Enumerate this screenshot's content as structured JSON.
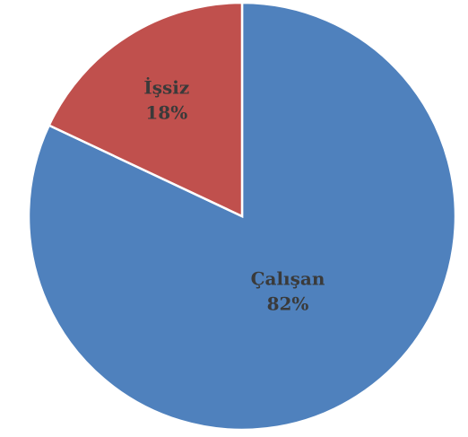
{
  "chart_data": {
    "type": "pie",
    "slices": [
      {
        "label": "Çalışan",
        "value": 82,
        "value_label": "82%",
        "color": "#4f81bd"
      },
      {
        "label": "İşsiz",
        "value": 18,
        "value_label": "18%",
        "color": "#c0504d"
      }
    ],
    "start_angle": "12 o'clock",
    "direction": "clockwise",
    "legend": "none"
  }
}
